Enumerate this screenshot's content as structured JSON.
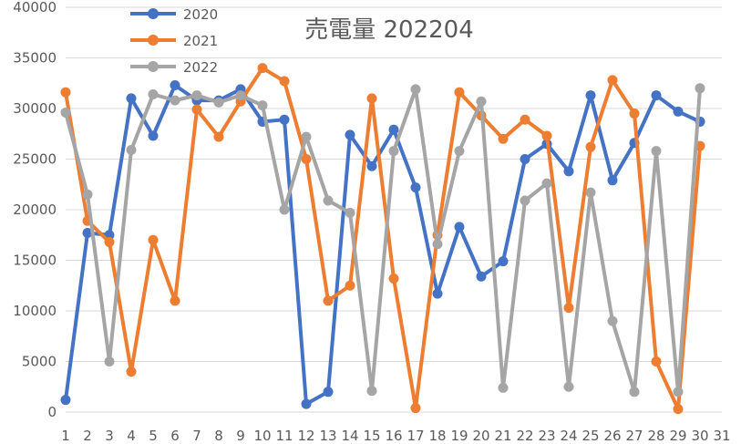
{
  "chart_data": {
    "type": "line",
    "title": "売電量 202204",
    "xlabel": "",
    "ylabel": "",
    "x": [
      1,
      2,
      3,
      4,
      5,
      6,
      7,
      8,
      9,
      10,
      11,
      12,
      13,
      14,
      15,
      16,
      17,
      18,
      19,
      20,
      21,
      22,
      23,
      24,
      25,
      26,
      27,
      28,
      29,
      30
    ],
    "x_ticks": [
      1,
      2,
      3,
      4,
      5,
      6,
      7,
      8,
      9,
      10,
      11,
      12,
      13,
      14,
      15,
      16,
      17,
      18,
      19,
      20,
      21,
      22,
      23,
      24,
      25,
      26,
      27,
      28,
      29,
      30,
      31
    ],
    "xlim": [
      1,
      31
    ],
    "ylim": [
      0,
      40000
    ],
    "y_ticks": [
      0,
      5000,
      10000,
      15000,
      20000,
      25000,
      30000,
      35000,
      40000
    ],
    "grid": "horizontal",
    "legend_position": "top-left",
    "series": [
      {
        "name": "2020",
        "color": "#4472C4",
        "values": [
          1200,
          17700,
          17500,
          31000,
          27300,
          32300,
          30800,
          30800,
          31900,
          28700,
          28900,
          800,
          2000,
          27400,
          24300,
          27900,
          22200,
          11700,
          18300,
          13400,
          14900,
          25000,
          26500,
          23800,
          31300,
          22900,
          26600,
          31300,
          29700,
          28700
        ]
      },
      {
        "name": "2021",
        "color": "#ED7D31",
        "values": [
          31600,
          18900,
          16800,
          4000,
          17000,
          11000,
          29900,
          27200,
          30700,
          34000,
          32700,
          25000,
          11000,
          12500,
          31000,
          13200,
          400,
          17500,
          31600,
          29300,
          27000,
          28900,
          27300,
          10300,
          26200,
          32800,
          29500,
          5000,
          300,
          26300
        ]
      },
      {
        "name": "2022",
        "color": "#A5A5A5",
        "values": [
          29600,
          21500,
          5000,
          25900,
          31400,
          30800,
          31300,
          30600,
          31300,
          30300,
          20000,
          27200,
          20900,
          19700,
          2100,
          25800,
          31900,
          16600,
          25800,
          30700,
          2400,
          20900,
          22600,
          2500,
          21700,
          9000,
          2000,
          25800,
          2000,
          32000
        ]
      }
    ]
  }
}
